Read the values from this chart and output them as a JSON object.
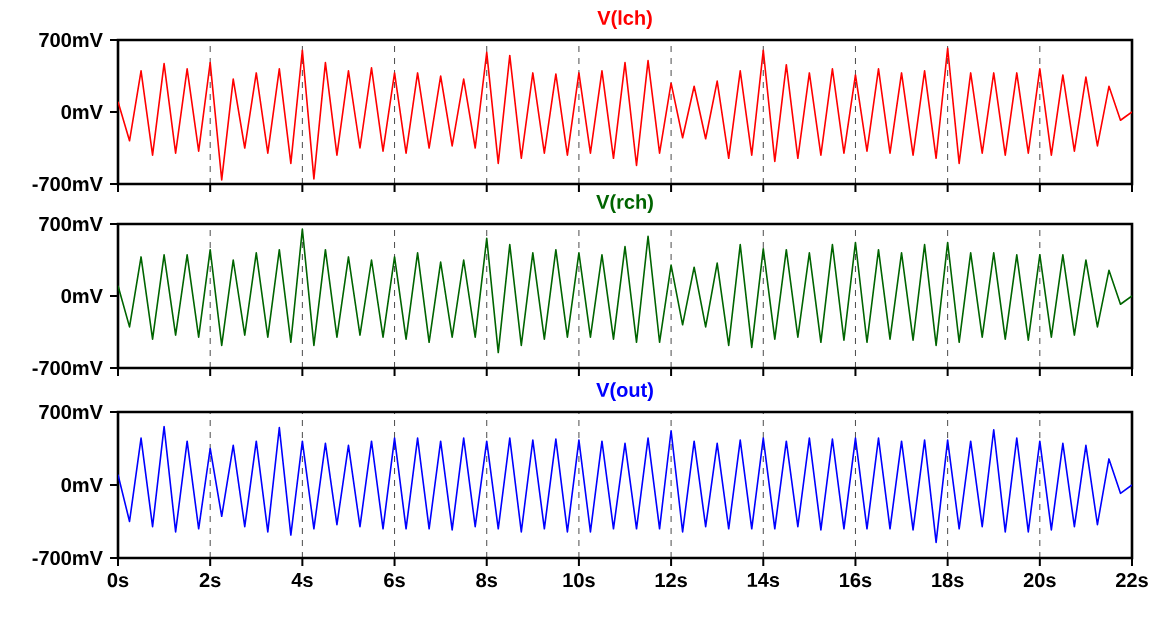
{
  "chart_data": [
    {
      "type": "line",
      "title": "V(lch)",
      "x": [
        0,
        0.25,
        0.5,
        0.75,
        1,
        1.25,
        1.5,
        1.75,
        2,
        2.25,
        2.5,
        2.75,
        3,
        3.25,
        3.5,
        3.75,
        4,
        4.25,
        4.5,
        4.75,
        5,
        5.25,
        5.5,
        5.75,
        6,
        6.25,
        6.5,
        6.75,
        7,
        7.25,
        7.5,
        7.75,
        8,
        8.25,
        8.5,
        8.75,
        9,
        9.25,
        9.5,
        9.75,
        10,
        10.25,
        10.5,
        10.75,
        11,
        11.25,
        11.5,
        11.75,
        12,
        12.25,
        12.5,
        12.75,
        13,
        13.25,
        13.5,
        13.75,
        14,
        14.25,
        14.5,
        14.75,
        15,
        15.25,
        15.5,
        15.75,
        16,
        16.25,
        16.5,
        16.75,
        17,
        17.25,
        17.5,
        17.75,
        18,
        18.25,
        18.5,
        18.75,
        19,
        19.25,
        19.5,
        19.75,
        20,
        20.25,
        20.5,
        20.75,
        21,
        21.25,
        21.5,
        21.75,
        22
      ],
      "series": [
        {
          "color": "#ff0000",
          "values": [
            100,
            -280,
            400,
            -420,
            470,
            -400,
            420,
            -380,
            480,
            -660,
            320,
            -350,
            380,
            -400,
            420,
            -500,
            600,
            -650,
            480,
            -420,
            400,
            -350,
            430,
            -380,
            380,
            -400,
            380,
            -350,
            350,
            -330,
            320,
            -350,
            580,
            -500,
            550,
            -450,
            380,
            -400,
            370,
            -420,
            380,
            -400,
            400,
            -450,
            480,
            -520,
            500,
            -400,
            280,
            -250,
            250,
            -260,
            300,
            -450,
            400,
            -420,
            600,
            -480,
            460,
            -450,
            380,
            -420,
            420,
            -400,
            360,
            -380,
            420,
            -400,
            380,
            -420,
            400,
            -450,
            620,
            -500,
            380,
            -400,
            380,
            -420,
            380,
            -400,
            420,
            -420,
            360,
            -380,
            340,
            -330,
            250,
            -80,
            0
          ]
        }
      ],
      "xlim": [
        0,
        22
      ],
      "ylim": [
        -700,
        700
      ],
      "xticks": [
        {
          "value": 0,
          "label": null
        },
        {
          "value": 2,
          "label": null
        },
        {
          "value": 4,
          "label": null
        },
        {
          "value": 6,
          "label": null
        },
        {
          "value": 8,
          "label": null
        },
        {
          "value": 10,
          "label": null
        },
        {
          "value": 12,
          "label": null
        },
        {
          "value": 14,
          "label": null
        },
        {
          "value": 16,
          "label": null
        },
        {
          "value": 18,
          "label": null
        },
        {
          "value": 20,
          "label": null
        },
        {
          "value": 22,
          "label": null
        }
      ],
      "yticks": [
        {
          "value": -700,
          "label": "-700mV"
        },
        {
          "value": 0,
          "label": "0mV"
        },
        {
          "value": 700,
          "label": "700mV"
        }
      ],
      "tick_labels": "y",
      "grid": "x",
      "line_style": "solid"
    },
    {
      "type": "line",
      "title": "V(rch)",
      "x": [
        0,
        0.25,
        0.5,
        0.75,
        1,
        1.25,
        1.5,
        1.75,
        2,
        2.25,
        2.5,
        2.75,
        3,
        3.25,
        3.5,
        3.75,
        4,
        4.25,
        4.5,
        4.75,
        5,
        5.25,
        5.5,
        5.75,
        6,
        6.25,
        6.5,
        6.75,
        7,
        7.25,
        7.5,
        7.75,
        8,
        8.25,
        8.5,
        8.75,
        9,
        9.25,
        9.5,
        9.75,
        10,
        10.25,
        10.5,
        10.75,
        11,
        11.25,
        11.5,
        11.75,
        12,
        12.25,
        12.5,
        12.75,
        13,
        13.25,
        13.5,
        13.75,
        14,
        14.25,
        14.5,
        14.75,
        15,
        15.25,
        15.5,
        15.75,
        16,
        16.25,
        16.5,
        16.75,
        17,
        17.25,
        17.5,
        17.75,
        18,
        18.25,
        18.5,
        18.75,
        19,
        19.25,
        19.5,
        19.75,
        20,
        20.25,
        20.5,
        20.75,
        21,
        21.25,
        21.5,
        21.75,
        22
      ],
      "series": [
        {
          "color": "#006400",
          "values": [
            100,
            -300,
            380,
            -420,
            400,
            -380,
            400,
            -400,
            450,
            -480,
            350,
            -380,
            420,
            -400,
            450,
            -450,
            650,
            -480,
            450,
            -400,
            380,
            -380,
            350,
            -400,
            380,
            -420,
            420,
            -450,
            330,
            -400,
            350,
            -400,
            560,
            -550,
            500,
            -480,
            420,
            -420,
            450,
            -400,
            420,
            -400,
            400,
            -420,
            480,
            -450,
            580,
            -450,
            300,
            -280,
            280,
            -300,
            320,
            -480,
            500,
            -500,
            460,
            -420,
            450,
            -400,
            420,
            -450,
            500,
            -430,
            520,
            -450,
            450,
            -420,
            420,
            -430,
            500,
            -480,
            520,
            -450,
            420,
            -400,
            420,
            -420,
            400,
            -430,
            400,
            -400,
            400,
            -380,
            350,
            -300,
            250,
            -80,
            0
          ]
        }
      ],
      "xlim": [
        0,
        22
      ],
      "ylim": [
        -700,
        700
      ],
      "xticks": [
        {
          "value": 0,
          "label": null
        },
        {
          "value": 2,
          "label": null
        },
        {
          "value": 4,
          "label": null
        },
        {
          "value": 6,
          "label": null
        },
        {
          "value": 8,
          "label": null
        },
        {
          "value": 10,
          "label": null
        },
        {
          "value": 12,
          "label": null
        },
        {
          "value": 14,
          "label": null
        },
        {
          "value": 16,
          "label": null
        },
        {
          "value": 18,
          "label": null
        },
        {
          "value": 20,
          "label": null
        },
        {
          "value": 22,
          "label": null
        }
      ],
      "yticks": [
        {
          "value": -700,
          "label": "-700mV"
        },
        {
          "value": 0,
          "label": "0mV"
        },
        {
          "value": 700,
          "label": "700mV"
        }
      ],
      "tick_labels": "y",
      "grid": "x",
      "line_style": "solid"
    },
    {
      "type": "line",
      "title": "V(out)",
      "x": [
        0,
        0.25,
        0.5,
        0.75,
        1,
        1.25,
        1.5,
        1.75,
        2,
        2.25,
        2.5,
        2.75,
        3,
        3.25,
        3.5,
        3.75,
        4,
        4.25,
        4.5,
        4.75,
        5,
        5.25,
        5.5,
        5.75,
        6,
        6.25,
        6.5,
        6.75,
        7,
        7.25,
        7.5,
        7.75,
        8,
        8.25,
        8.5,
        8.75,
        9,
        9.25,
        9.5,
        9.75,
        10,
        10.25,
        10.5,
        10.75,
        11,
        11.25,
        11.5,
        11.75,
        12,
        12.25,
        12.5,
        12.75,
        13,
        13.25,
        13.5,
        13.75,
        14,
        14.25,
        14.5,
        14.75,
        15,
        15.25,
        15.5,
        15.75,
        16,
        16.25,
        16.5,
        16.75,
        17,
        17.25,
        17.5,
        17.75,
        18,
        18.25,
        18.5,
        18.75,
        19,
        19.25,
        19.5,
        19.75,
        20,
        20.25,
        20.5,
        20.75,
        21,
        21.25,
        21.5,
        21.75,
        22
      ],
      "series": [
        {
          "color": "#0000ff",
          "values": [
            100,
            -350,
            450,
            -400,
            560,
            -450,
            420,
            -420,
            350,
            -300,
            380,
            -400,
            420,
            -450,
            550,
            -480,
            420,
            -420,
            400,
            -380,
            380,
            -400,
            420,
            -420,
            450,
            -420,
            450,
            -420,
            420,
            -430,
            450,
            -400,
            420,
            -420,
            450,
            -450,
            430,
            -420,
            440,
            -450,
            430,
            -450,
            420,
            -420,
            400,
            -420,
            450,
            -420,
            520,
            -450,
            420,
            -400,
            400,
            -420,
            430,
            -420,
            450,
            -420,
            420,
            -400,
            450,
            -430,
            440,
            -420,
            450,
            -420,
            450,
            -420,
            420,
            -430,
            430,
            -550,
            430,
            -420,
            420,
            -400,
            530,
            -450,
            450,
            -450,
            420,
            -430,
            400,
            -400,
            380,
            -380,
            250,
            -80,
            0
          ]
        }
      ],
      "xlim": [
        0,
        22
      ],
      "ylim": [
        -700,
        700
      ],
      "xticks": [
        {
          "value": 0,
          "label": "0s"
        },
        {
          "value": 2,
          "label": "2s"
        },
        {
          "value": 4,
          "label": "4s"
        },
        {
          "value": 6,
          "label": "6s"
        },
        {
          "value": 8,
          "label": "8s"
        },
        {
          "value": 10,
          "label": "10s"
        },
        {
          "value": 12,
          "label": "12s"
        },
        {
          "value": 14,
          "label": "14s"
        },
        {
          "value": 16,
          "label": "16s"
        },
        {
          "value": 18,
          "label": "18s"
        },
        {
          "value": 20,
          "label": "20s"
        },
        {
          "value": 22,
          "label": "22s"
        }
      ],
      "yticks": [
        {
          "value": -700,
          "label": "-700mV"
        },
        {
          "value": 0,
          "label": "0mV"
        },
        {
          "value": 700,
          "label": "700mV"
        }
      ],
      "grid": "x",
      "line_style": "solid"
    }
  ]
}
